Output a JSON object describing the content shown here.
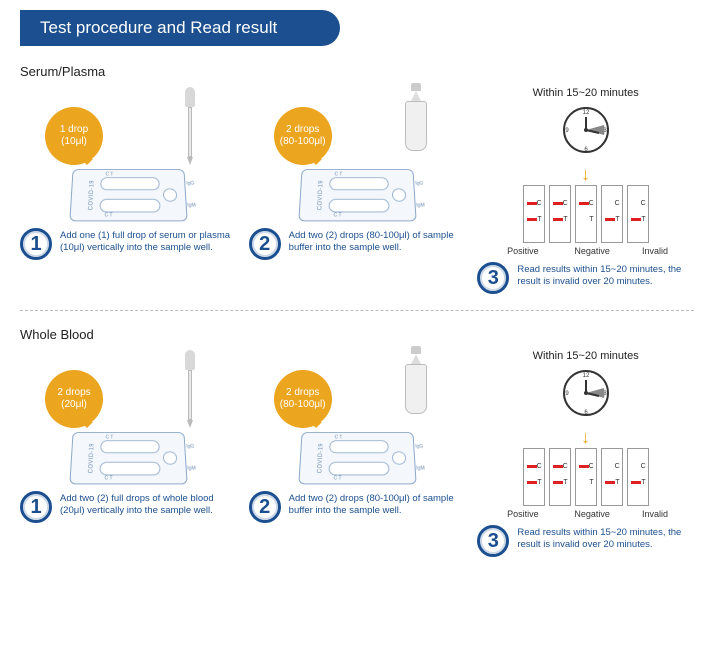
{
  "header": "Test procedure and Read result",
  "colors": {
    "primary": "#1b4f8f",
    "accent": "#eba51f",
    "result_line": "#e02020",
    "cassette_border": "#8aa8c8"
  },
  "sections": [
    {
      "title": "Serum/Plasma",
      "steps": [
        {
          "num": "1",
          "bubble_line1": "1 drop",
          "bubble_line2": "(10μl)",
          "text": "Add one (1) full drop of serum or plasma (10μl) vertically into the sample well.",
          "tool": "dropper"
        },
        {
          "num": "2",
          "bubble_line1": "2 drops",
          "bubble_line2": "(80-100μl)",
          "text": "Add two (2) drops (80-100μl) of sample buffer into the sample well.",
          "tool": "bottle"
        },
        {
          "num": "3",
          "text": "Read results within 15~20 minutes, the result is invalid over 20 minutes."
        }
      ],
      "results": {
        "title": "Within 15~20 minutes",
        "labels": [
          "Positive",
          "Negative",
          "Invalid"
        ],
        "strips": [
          {
            "c": true,
            "t": true
          },
          {
            "c": true,
            "t": true
          },
          {
            "c": true,
            "t": false
          },
          {
            "c": false,
            "t": true
          },
          {
            "c": false,
            "t": true
          }
        ],
        "group_widths": [
          "42%",
          "22%",
          "36%"
        ]
      }
    },
    {
      "title": "Whole Blood",
      "steps": [
        {
          "num": "1",
          "bubble_line1": "2 drops",
          "bubble_line2": "(20μl)",
          "text": "Add two (2) full drops of whole blood (20μl) vertically into the sample well.",
          "tool": "dropper"
        },
        {
          "num": "2",
          "bubble_line1": "2 drops",
          "bubble_line2": "(80-100μl)",
          "text": "Add two (2) drops (80-100μl) of sample buffer into the sample well.",
          "tool": "bottle"
        },
        {
          "num": "3",
          "text": "Read results within 15~20 minutes, the result is invalid over 20 minutes."
        }
      ],
      "results": {
        "title": "Within 15~20 minutes",
        "labels": [
          "Positive",
          "Negative",
          "Invalid"
        ],
        "strips": [
          {
            "c": true,
            "t": true
          },
          {
            "c": true,
            "t": true
          },
          {
            "c": true,
            "t": false
          },
          {
            "c": false,
            "t": true
          },
          {
            "c": false,
            "t": true
          }
        ],
        "group_widths": [
          "42%",
          "22%",
          "36%"
        ]
      }
    }
  ],
  "cassette": {
    "brand": "COVID-19",
    "ct_label": "C  T",
    "side_top": "IgG",
    "side_bot": "IgM"
  }
}
